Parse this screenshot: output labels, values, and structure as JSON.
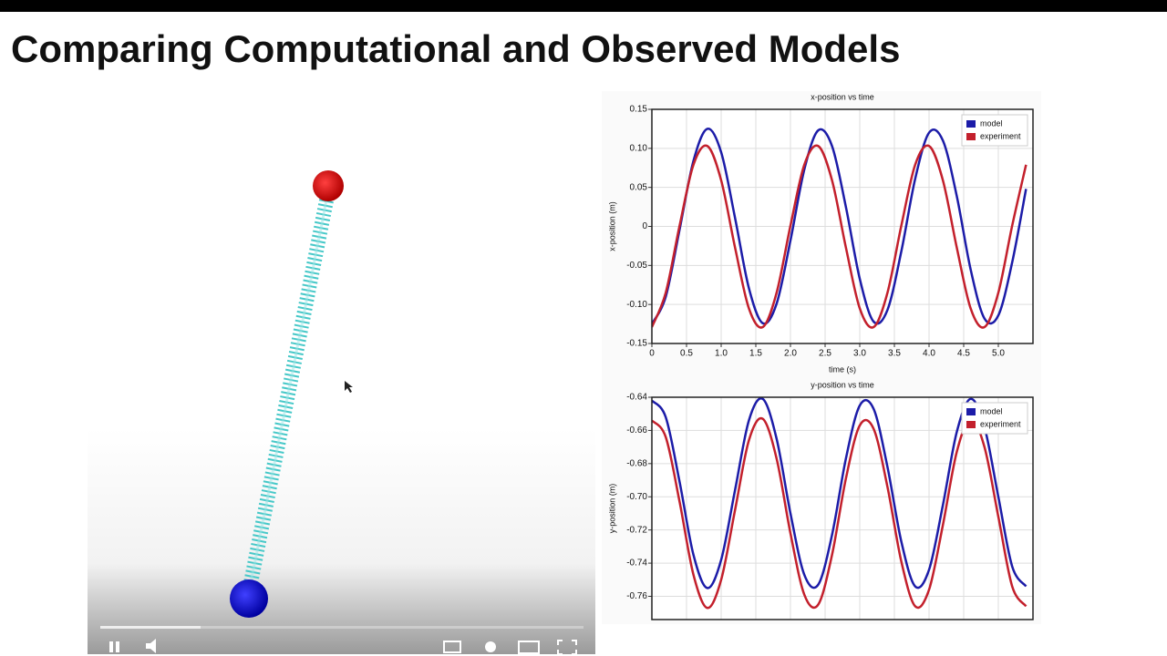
{
  "title": "Comparing Computational and Observed Models",
  "chart_data": [
    {
      "type": "line",
      "title": "x-position vs time",
      "xlabel": "time (s)",
      "ylabel": "x-position (m)",
      "x": [
        0,
        0.2,
        0.4,
        0.6,
        0.8,
        1.0,
        1.2,
        1.4,
        1.6,
        1.8,
        2.0,
        2.2,
        2.4,
        2.6,
        2.8,
        3.0,
        3.2,
        3.4,
        3.6,
        3.8,
        4.0,
        4.2,
        4.4,
        4.6,
        4.8,
        5.0,
        5.2,
        5.4
      ],
      "series": [
        {
          "name": "model",
          "color": "#1c1ca8",
          "values": [
            -0.125,
            -0.09,
            -0.004,
            0.084,
            0.125,
            0.095,
            0.011,
            -0.079,
            -0.124,
            -0.099,
            -0.018,
            0.073,
            0.123,
            0.103,
            0.025,
            -0.067,
            -0.122,
            -0.107,
            -0.032,
            0.061,
            0.12,
            0.11,
            0.039,
            -0.055,
            -0.118,
            -0.114,
            -0.046,
            0.048
          ]
        },
        {
          "name": "experiment",
          "color": "#c3202c",
          "values": [
            -0.129,
            -0.085,
            0.001,
            0.079,
            0.103,
            0.059,
            -0.027,
            -0.105,
            -0.129,
            -0.085,
            0.001,
            0.079,
            0.103,
            0.059,
            -0.027,
            -0.105,
            -0.129,
            -0.085,
            0.001,
            0.079,
            0.103,
            0.059,
            -0.027,
            -0.105,
            -0.129,
            -0.085,
            0.001,
            0.079
          ]
        }
      ],
      "xlim": [
        0,
        5.5
      ],
      "xticks": [
        0,
        0.5,
        {
          "value": 1,
          "label": "1.0"
        },
        1.5,
        {
          "value": 2,
          "label": "2.0"
        },
        2.5,
        {
          "value": 3,
          "label": "3.0"
        },
        3.5,
        {
          "value": 4,
          "label": "4.0"
        },
        4.5,
        {
          "value": 5,
          "label": "5.0"
        }
      ],
      "ylim": [
        -0.15,
        0.15
      ],
      "yticks": [
        -0.15,
        {
          "value": -0.1,
          "label": "-0.10"
        },
        -0.05,
        0,
        0.05,
        {
          "value": 0.1,
          "label": "0.10"
        },
        0.15
      ],
      "grid": true,
      "legend": "upper right"
    },
    {
      "type": "line",
      "title": "y-position vs time",
      "ylabel": "y-position (m)",
      "x": [
        0,
        0.2,
        0.4,
        0.6,
        0.8,
        1.0,
        1.2,
        1.4,
        1.6,
        1.8,
        2.0,
        2.2,
        2.4,
        2.6,
        2.8,
        3.0,
        3.2,
        3.4,
        3.6,
        3.8,
        4.0,
        4.2,
        4.4,
        4.6,
        4.8,
        5.0,
        5.2,
        5.4
      ],
      "series": [
        {
          "name": "model",
          "color": "#1c1ca8",
          "values": [
            -0.642,
            -0.652,
            -0.691,
            -0.735,
            -0.755,
            -0.738,
            -0.696,
            -0.654,
            -0.641,
            -0.665,
            -0.71,
            -0.747,
            -0.753,
            -0.723,
            -0.677,
            -0.645,
            -0.647,
            -0.682,
            -0.727,
            -0.754,
            -0.744,
            -0.705,
            -0.661,
            -0.641,
            -0.658,
            -0.7,
            -0.742,
            -0.754
          ]
        },
        {
          "name": "experiment",
          "color": "#c3202c",
          "values": [
            -0.654,
            -0.664,
            -0.703,
            -0.747,
            -0.767,
            -0.75,
            -0.708,
            -0.666,
            -0.653,
            -0.677,
            -0.722,
            -0.759,
            -0.765,
            -0.735,
            -0.689,
            -0.657,
            -0.659,
            -0.694,
            -0.739,
            -0.766,
            -0.756,
            -0.717,
            -0.673,
            -0.653,
            -0.67,
            -0.712,
            -0.754,
            -0.766
          ]
        }
      ],
      "xlim": [
        0,
        5.5
      ],
      "ylim": [
        -0.774,
        -0.64
      ],
      "yticks": [
        -0.76,
        -0.74,
        -0.72,
        {
          "value": -0.7,
          "label": "-0.70"
        },
        -0.68,
        -0.66,
        -0.64
      ],
      "grid": true,
      "legend": "upper right"
    }
  ]
}
